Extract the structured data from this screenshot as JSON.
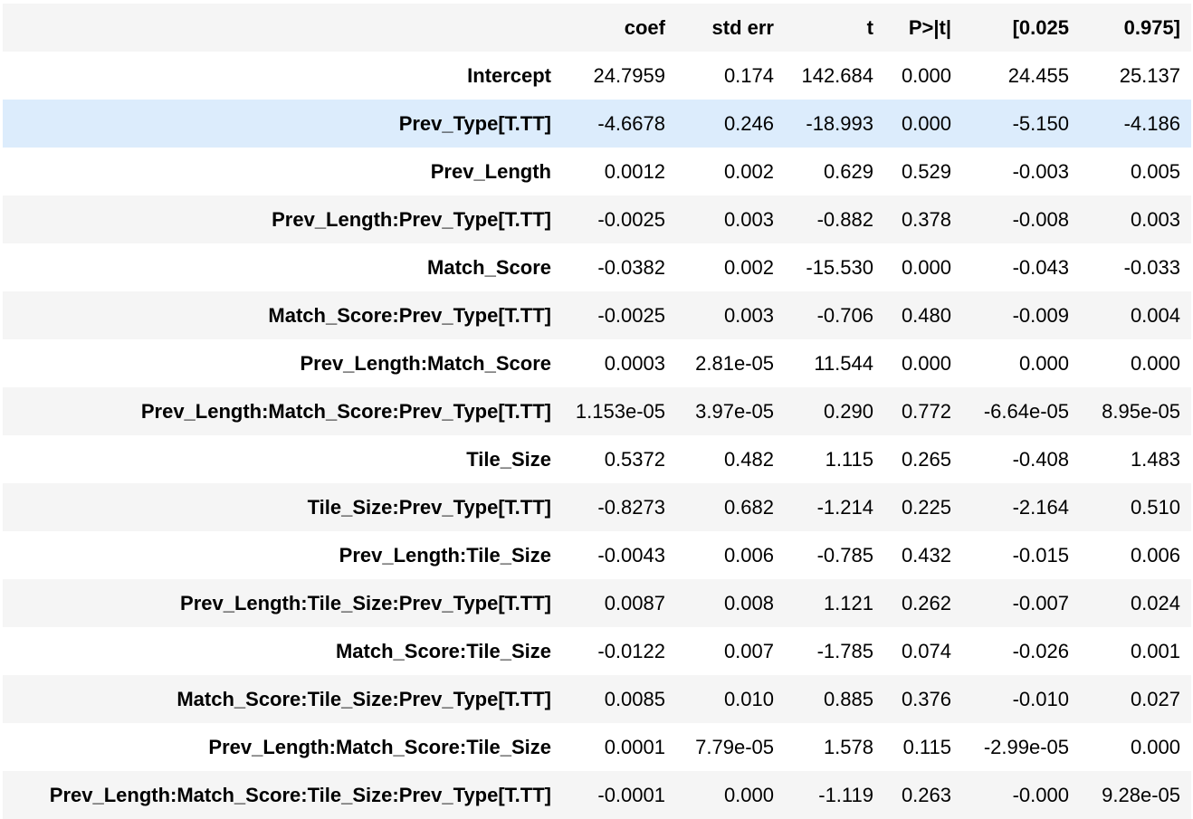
{
  "table": {
    "columns": [
      "",
      "coef",
      "std err",
      "t",
      "P>|t|",
      "[0.025",
      "0.975]"
    ],
    "highlight_color": "#dcecfc",
    "stripe_color": "#f5f5f5",
    "rows": [
      {
        "label": "Intercept",
        "values": [
          "24.7959",
          "0.174",
          "142.684",
          "0.000",
          "24.455",
          "25.137"
        ]
      },
      {
        "label": "Prev_Type[T.TT]",
        "values": [
          "-4.6678",
          "0.246",
          "-18.993",
          "0.000",
          "-5.150",
          "-4.186"
        ]
      },
      {
        "label": "Prev_Length",
        "values": [
          "0.0012",
          "0.002",
          "0.629",
          "0.529",
          "-0.003",
          "0.005"
        ]
      },
      {
        "label": "Prev_Length:Prev_Type[T.TT]",
        "values": [
          "-0.0025",
          "0.003",
          "-0.882",
          "0.378",
          "-0.008",
          "0.003"
        ]
      },
      {
        "label": "Match_Score",
        "values": [
          "-0.0382",
          "0.002",
          "-15.530",
          "0.000",
          "-0.043",
          "-0.033"
        ]
      },
      {
        "label": "Match_Score:Prev_Type[T.TT]",
        "values": [
          "-0.0025",
          "0.003",
          "-0.706",
          "0.480",
          "-0.009",
          "0.004"
        ]
      },
      {
        "label": "Prev_Length:Match_Score",
        "values": [
          "0.0003",
          "2.81e-05",
          "11.544",
          "0.000",
          "0.000",
          "0.000"
        ]
      },
      {
        "label": "Prev_Length:Match_Score:Prev_Type[T.TT]",
        "values": [
          "1.153e-05",
          "3.97e-05",
          "0.290",
          "0.772",
          "-6.64e-05",
          "8.95e-05"
        ]
      },
      {
        "label": "Tile_Size",
        "values": [
          "0.5372",
          "0.482",
          "1.115",
          "0.265",
          "-0.408",
          "1.483"
        ]
      },
      {
        "label": "Tile_Size:Prev_Type[T.TT]",
        "values": [
          "-0.8273",
          "0.682",
          "-1.214",
          "0.225",
          "-2.164",
          "0.510"
        ]
      },
      {
        "label": "Prev_Length:Tile_Size",
        "values": [
          "-0.0043",
          "0.006",
          "-0.785",
          "0.432",
          "-0.015",
          "0.006"
        ]
      },
      {
        "label": "Prev_Length:Tile_Size:Prev_Type[T.TT]",
        "values": [
          "0.0087",
          "0.008",
          "1.121",
          "0.262",
          "-0.007",
          "0.024"
        ]
      },
      {
        "label": "Match_Score:Tile_Size",
        "values": [
          "-0.0122",
          "0.007",
          "-1.785",
          "0.074",
          "-0.026",
          "0.001"
        ]
      },
      {
        "label": "Match_Score:Tile_Size:Prev_Type[T.TT]",
        "values": [
          "0.0085",
          "0.010",
          "0.885",
          "0.376",
          "-0.010",
          "0.027"
        ]
      },
      {
        "label": "Prev_Length:Match_Score:Tile_Size",
        "values": [
          "0.0001",
          "7.79e-05",
          "1.578",
          "0.115",
          "-2.99e-05",
          "0.000"
        ]
      },
      {
        "label": "Prev_Length:Match_Score:Tile_Size:Prev_Type[T.TT]",
        "values": [
          "-0.0001",
          "0.000",
          "-1.119",
          "0.263",
          "-0.000",
          "9.28e-05"
        ]
      }
    ]
  }
}
